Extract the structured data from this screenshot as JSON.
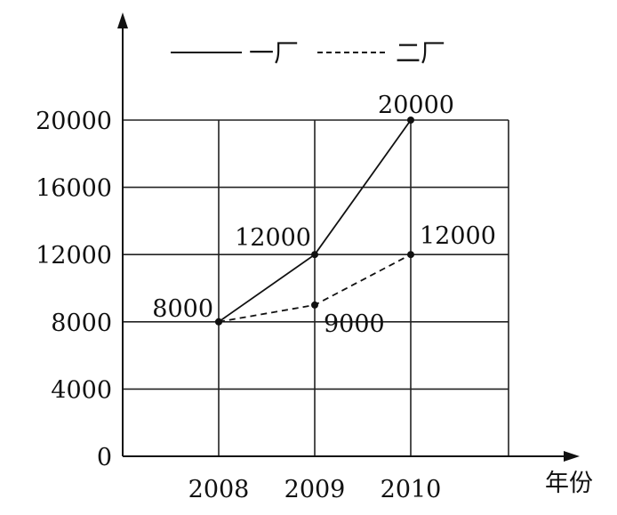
{
  "chart_data": {
    "type": "line",
    "title": "",
    "xlabel": "年份",
    "ylabel": "",
    "categories": [
      "2008",
      "2009",
      "2010"
    ],
    "x_ticks": [
      "2008",
      "2009",
      "2010"
    ],
    "y_ticks": [
      "0",
      "4000",
      "8000",
      "12000",
      "16000",
      "20000"
    ],
    "ylim": [
      0,
      20000
    ],
    "grid": true,
    "legend_position": "top",
    "series": [
      {
        "name": "一厂",
        "values": [
          8000,
          12000,
          20000
        ],
        "labels": [
          "8000",
          "12000",
          "20000"
        ],
        "style": "solid",
        "color": "#111111"
      },
      {
        "name": "二厂",
        "values": [
          8000,
          9000,
          12000
        ],
        "labels": [
          "",
          "9000",
          "12000"
        ],
        "style": "dashed",
        "color": "#111111"
      }
    ]
  }
}
